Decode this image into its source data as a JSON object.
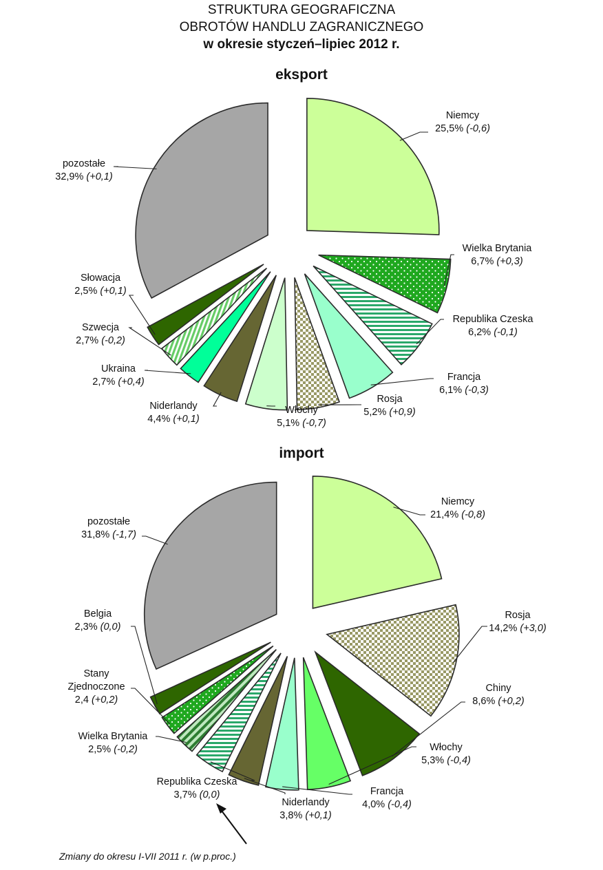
{
  "title": {
    "line1": "STRUKTURA GEOGRAFICZNA",
    "line2": "OBROTÓW HANDLU ZAGRANICZNEGO",
    "line3": "w okresie styczeń–lipiec 2012 r."
  },
  "footnote": "Zmiany do okresu I-VII 2011 r. (w p.proc.)",
  "colors": {
    "light_green": "#ccff99",
    "dark_green": "#2e6600",
    "bright_green": "#1fa81f",
    "mid_green": "#66ff66",
    "mint": "#99ffcc",
    "spring": "#00ff99",
    "teal_stripe": "#2aa86a",
    "olive": "#666633",
    "check_olive": "#999966",
    "pale_green": "#ccffcc",
    "grey": "#a6a6a6",
    "outline": "#2b2b2b"
  },
  "chart_data": [
    {
      "type": "pie",
      "title": "eksport",
      "unit": "%",
      "slices": [
        {
          "label": "Niemcy",
          "value": 25.5,
          "change": "(-0,6)",
          "value_text": "25,5%"
        },
        {
          "label": "Wielka Brytania",
          "value": 6.7,
          "change": "(+0,3)",
          "value_text": "6,7%"
        },
        {
          "label": "Republika Czeska",
          "value": 6.2,
          "change": "(-0,1)",
          "value_text": "6,2%"
        },
        {
          "label": "Francja",
          "value": 6.1,
          "change": "(-0,3)",
          "value_text": "6,1%"
        },
        {
          "label": "Rosja",
          "value": 5.2,
          "change": "(+0,9)",
          "value_text": "5,2%"
        },
        {
          "label": "Włochy",
          "value": 5.1,
          "change": "(-0,7)",
          "value_text": "5,1%"
        },
        {
          "label": "Niderlandy",
          "value": 4.4,
          "change": "(+0,1)",
          "value_text": "4,4%"
        },
        {
          "label": "Ukraina",
          "value": 2.7,
          "change": "(+0,4)",
          "value_text": "2,7%"
        },
        {
          "label": "Szwecja",
          "value": 2.7,
          "change": "(-0,2)",
          "value_text": "2,7%"
        },
        {
          "label": "Słowacja",
          "value": 2.5,
          "change": "(+0,1)",
          "value_text": "2,5%"
        },
        {
          "label": "pozostałe",
          "value": 32.9,
          "change": "(+0,1)",
          "value_text": "32,9%"
        }
      ]
    },
    {
      "type": "pie",
      "title": "import",
      "unit": "%",
      "slices": [
        {
          "label": "Niemcy",
          "value": 21.4,
          "change": "(-0,8)",
          "value_text": "21,4%"
        },
        {
          "label": "Rosja",
          "value": 14.2,
          "change": "(+3,0)",
          "value_text": "14,2%"
        },
        {
          "label": "Chiny",
          "value": 8.6,
          "change": "(+0,2)",
          "value_text": "8,6%"
        },
        {
          "label": "Włochy",
          "value": 5.3,
          "change": "(-0,4)",
          "value_text": "5,3%"
        },
        {
          "label": "Francja",
          "value": 4.0,
          "change": "(-0,4)",
          "value_text": "4,0%"
        },
        {
          "label": "Niderlandy",
          "value": 3.8,
          "change": "(+0,1)",
          "value_text": "3,8%"
        },
        {
          "label": "Republika Czeska",
          "value": 3.7,
          "change": "(0,0)",
          "value_text": "3,7%"
        },
        {
          "label": "Wielka Brytania",
          "value": 2.5,
          "change": "(-0,2)",
          "value_text": "2,5%"
        },
        {
          "label": "Stany Zjednoczone",
          "value": 2.4,
          "change": "(+0,2)",
          "value_text": "2,4"
        },
        {
          "label": "Belgia",
          "value": 2.3,
          "change": "(0,0)",
          "value_text": "2,3%"
        },
        {
          "label": "pozostałe",
          "value": 31.8,
          "change": "(-1,7)",
          "value_text": "31,8%"
        }
      ]
    }
  ]
}
